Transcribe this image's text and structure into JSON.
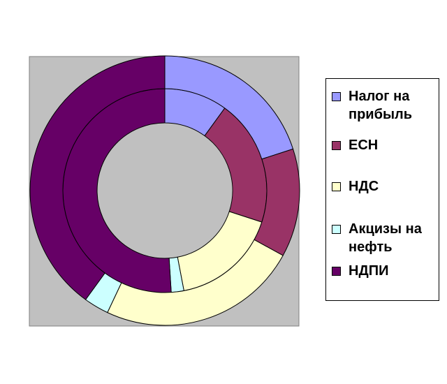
{
  "chart_data": {
    "type": "doughnut",
    "rings": [
      {
        "ring": "inner",
        "values": [
          10,
          20,
          17,
          2,
          51
        ]
      },
      {
        "ring": "outer",
        "values": [
          20,
          13,
          24,
          3,
          40
        ]
      }
    ],
    "categories": [
      "Налог на прибыль",
      "ЕСН",
      "НДС",
      "Акцизы на нефть",
      "НДПИ"
    ],
    "colors": [
      "#9999ff",
      "#993366",
      "#ffffcc",
      "#ccffff",
      "#660066"
    ],
    "plot_background": "#c0c0c0",
    "legend_position": "right"
  },
  "legend": {
    "items": [
      {
        "label": "Налог на прибыль",
        "color": "#9999ff"
      },
      {
        "label": "ЕСН",
        "color": "#993366"
      },
      {
        "label": "НДС",
        "color": "#ffffcc"
      },
      {
        "label": "Акцизы на нефть",
        "color": "#ccffff"
      },
      {
        "label": "НДПИ",
        "color": "#660066"
      }
    ]
  }
}
